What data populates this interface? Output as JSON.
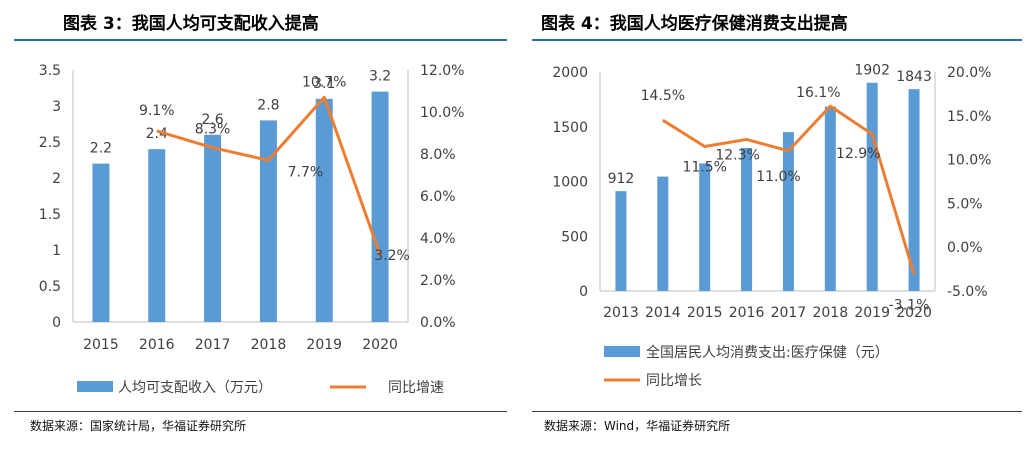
{
  "panels": [
    {
      "title": "图表 3：我国人均可支配收入提高",
      "source": "数据来源：国家统计局，华福证券研究所",
      "chart_data": {
        "type": "bar",
        "categories": [
          "2015",
          "2016",
          "2017",
          "2018",
          "2019",
          "2020"
        ],
        "series": [
          {
            "name": "人均可支配收入（万元）",
            "type": "bar",
            "axis": "left",
            "values": [
              2.2,
              2.4,
              2.6,
              2.8,
              3.1,
              3.2
            ],
            "labels": [
              "2.2",
              "2.4",
              "2.6",
              "2.8",
              "3.1",
              "3.2"
            ]
          },
          {
            "name": "同比增速",
            "type": "line",
            "axis": "right",
            "values": [
              null,
              9.1,
              8.3,
              7.7,
              10.7,
              3.2
            ],
            "labels": [
              "",
              "9.1%",
              "8.3%",
              "7.7%",
              "10.7%",
              "3.2%"
            ]
          }
        ],
        "left_axis": {
          "min": 0,
          "max": 3.5,
          "ticks": [
            "0",
            "0.5",
            "1",
            "1.5",
            "2",
            "2.5",
            "3",
            "3.5"
          ]
        },
        "right_axis": {
          "min": 0,
          "max": 12,
          "ticks": [
            "0.0%",
            "2.0%",
            "4.0%",
            "6.0%",
            "8.0%",
            "10.0%",
            "12.0%"
          ]
        },
        "grid": false,
        "legend": "bottom",
        "colors": {
          "bar": "#5b9bd5",
          "line": "#ed7d31"
        }
      }
    },
    {
      "title": "图表 4：我国人均医疗保健消费支出提高",
      "source": "数据来源：Wind，华福证券研究所",
      "chart_data": {
        "type": "bar",
        "categories": [
          "2013",
          "2014",
          "2015",
          "2016",
          "2017",
          "2018",
          "2019",
          "2020"
        ],
        "series": [
          {
            "name": "全国居民人均消费支出:医疗保健（元）",
            "type": "bar",
            "axis": "left",
            "values": [
              912,
              1045,
              1165,
              1307,
              1451,
              1685,
              1902,
              1843
            ],
            "labels": [
              "912",
              "",
              "",
              "",
              "",
              "",
              "1902",
              "1843"
            ]
          },
          {
            "name": "同比增长",
            "type": "line",
            "axis": "right",
            "values": [
              null,
              14.5,
              11.5,
              12.3,
              11.0,
              16.1,
              12.9,
              -3.1
            ],
            "labels": [
              "",
              "14.5%",
              "11.5%",
              "12.3%",
              "11.0%",
              "16.1%",
              "12.9%",
              "-3.1%"
            ]
          }
        ],
        "left_axis": {
          "min": 0,
          "max": 2000,
          "ticks": [
            "0",
            "500",
            "1000",
            "1500",
            "2000"
          ]
        },
        "right_axis": {
          "min": -5,
          "max": 20,
          "ticks": [
            "-5.0%",
            "0.0%",
            "5.0%",
            "10.0%",
            "15.0%",
            "20.0%"
          ]
        },
        "grid": false,
        "legend": "bottom",
        "colors": {
          "bar": "#5b9bd5",
          "line": "#ed7d31"
        }
      }
    }
  ]
}
